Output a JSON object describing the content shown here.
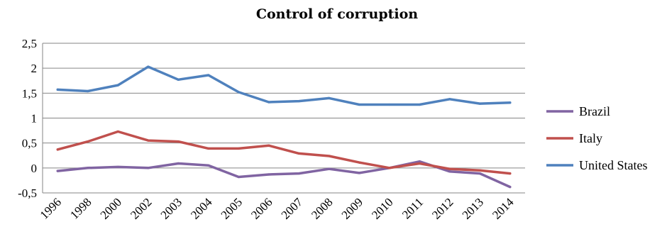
{
  "chart_data": {
    "type": "line",
    "title": "Control  of corruption",
    "xlabel": "",
    "ylabel": "",
    "categories": [
      "1996",
      "1998",
      "2000",
      "2002",
      "2003",
      "2004",
      "2005",
      "2006",
      "2007",
      "2008",
      "2009",
      "2010",
      "2011",
      "2012",
      "2013",
      "2014"
    ],
    "y_ticks": [
      "2,5",
      "2",
      "1,5",
      "1",
      "0,5",
      "0",
      "-0,5"
    ],
    "ylim": [
      -0.5,
      2.5
    ],
    "grid": true,
    "legend_position": "right",
    "series": [
      {
        "name": "Brazil",
        "color": "#8064A2",
        "values": [
          -0.06,
          0.0,
          0.02,
          0.0,
          0.09,
          0.05,
          -0.18,
          -0.13,
          -0.11,
          -0.02,
          -0.1,
          0.0,
          0.13,
          -0.07,
          -0.11,
          -0.38
        ]
      },
      {
        "name": "Italy",
        "color": "#C0504D",
        "values": [
          0.37,
          0.53,
          0.73,
          0.55,
          0.53,
          0.39,
          0.39,
          0.45,
          0.29,
          0.24,
          0.11,
          0.0,
          0.09,
          -0.02,
          -0.05,
          -0.11
        ]
      },
      {
        "name": "United States",
        "color": "#4F81BD",
        "values": [
          1.57,
          1.54,
          1.66,
          2.03,
          1.77,
          1.86,
          1.52,
          1.32,
          1.34,
          1.4,
          1.27,
          1.27,
          1.27,
          1.38,
          1.29,
          1.31
        ]
      }
    ]
  }
}
